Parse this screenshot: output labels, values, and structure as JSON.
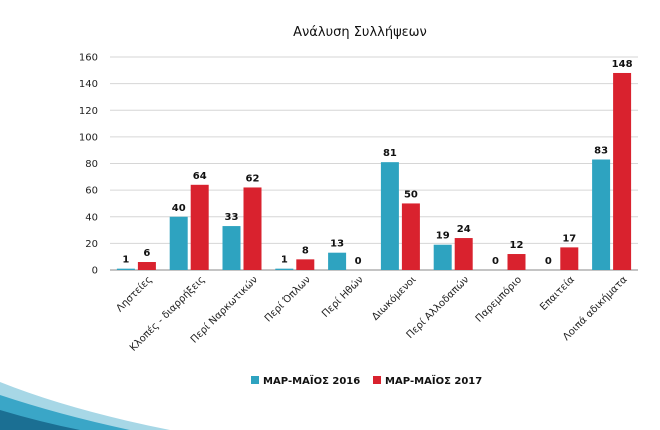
{
  "chart_data": {
    "type": "bar",
    "title": "Ανάλυση Συλλήψεων",
    "categories": [
      "Ληστείες",
      "Κλοπές - διαρρήξεις",
      "Περί Ναρκωτικών",
      "Περί Όπλων",
      "Περί Ηθών",
      "Διωκόμενοι",
      "Περί Αλλοδαπών",
      "Παρεμπόριο",
      "Επαιτεία",
      "Λοιπά αδικήματα"
    ],
    "series": [
      {
        "name": "ΜΑΡ-ΜΑΪΟΣ 2016",
        "color": "#2ea3c0",
        "values": [
          1,
          40,
          33,
          1,
          13,
          81,
          19,
          0,
          0,
          83
        ]
      },
      {
        "name": "ΜΑΡ-ΜΑΪΟΣ 2017",
        "color": "#d9222e",
        "values": [
          6,
          64,
          62,
          8,
          0,
          50,
          24,
          12,
          17,
          148
        ]
      }
    ],
    "ylim": [
      0,
      160
    ],
    "yticks": [
      0,
      20,
      40,
      60,
      80,
      100,
      120,
      140,
      160
    ],
    "xlabel": "",
    "ylabel": "",
    "grid": true,
    "legend_position": "bottom"
  },
  "decoration": {
    "corner_colors": [
      "#9dd3e3",
      "#3aa6c7",
      "#1b6f93"
    ]
  }
}
